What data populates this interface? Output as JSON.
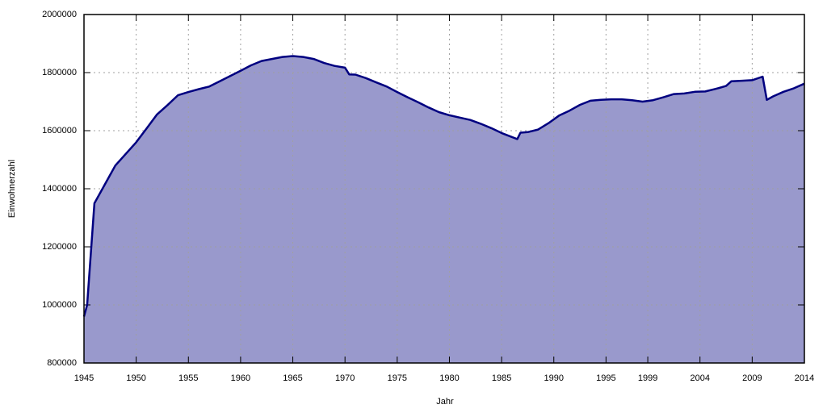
{
  "chart_data": {
    "type": "area",
    "x_label": "Jahr",
    "y_label": "Einwohnerzahl",
    "x": [
      1945,
      1945.3,
      1946,
      1948,
      1949,
      1950,
      1951,
      1952,
      1953,
      1954,
      1955,
      1956,
      1957,
      1958,
      1959,
      1960,
      1961,
      1962,
      1963,
      1964,
      1965,
      1966,
      1967,
      1968,
      1969,
      1970,
      1970.4,
      1971,
      1972,
      1973,
      1974,
      1975,
      1976,
      1977,
      1978,
      1979,
      1980,
      1981,
      1982,
      1983,
      1984,
      1985,
      1986,
      1986.5,
      1986.8,
      1987.5,
      1988.5,
      1989.5,
      1990.5,
      1991.5,
      1992.5,
      1993.5,
      1994.5,
      1995.5,
      1996.5,
      1997.5,
      1998.5,
      1999.5,
      2000.5,
      2001.5,
      2002.5,
      2003.5,
      2004.5,
      2005.5,
      2006.5,
      2007,
      2008,
      2009,
      2010,
      2010.4,
      2011,
      2012,
      2013,
      2014
    ],
    "values": [
      960000,
      1000000,
      1350000,
      1480000,
      1520000,
      1560000,
      1608000,
      1656000,
      1688000,
      1722000,
      1733000,
      1743000,
      1752000,
      1770000,
      1788000,
      1806000,
      1825000,
      1840000,
      1847000,
      1854000,
      1857000,
      1854000,
      1847000,
      1833000,
      1823000,
      1817000,
      1794000,
      1793000,
      1781000,
      1766000,
      1752000,
      1733000,
      1715000,
      1698000,
      1680000,
      1664000,
      1653000,
      1645000,
      1637000,
      1624000,
      1609000,
      1592000,
      1578000,
      1571000,
      1593000,
      1595000,
      1604000,
      1626000,
      1652000,
      1669000,
      1689000,
      1703000,
      1706000,
      1708000,
      1708000,
      1705000,
      1700000,
      1705000,
      1715000,
      1726000,
      1728000,
      1734000,
      1735000,
      1744000,
      1754000,
      1770000,
      1772000,
      1774000,
      1786000,
      1706000,
      1718000,
      1734000,
      1746000,
      1762000
    ],
    "color": "#9999cc",
    "line_color": "#000080",
    "xlim": [
      1945,
      2014
    ],
    "xticks": [
      1945,
      1950,
      1955,
      1960,
      1965,
      1970,
      1975,
      1980,
      1985,
      1990,
      1995,
      1999,
      2004,
      2009,
      2014
    ],
    "ylim": [
      800000,
      2000000
    ],
    "yticks": [
      800000,
      1000000,
      1200000,
      1400000,
      1600000,
      1800000,
      2000000
    ],
    "grid": true
  }
}
